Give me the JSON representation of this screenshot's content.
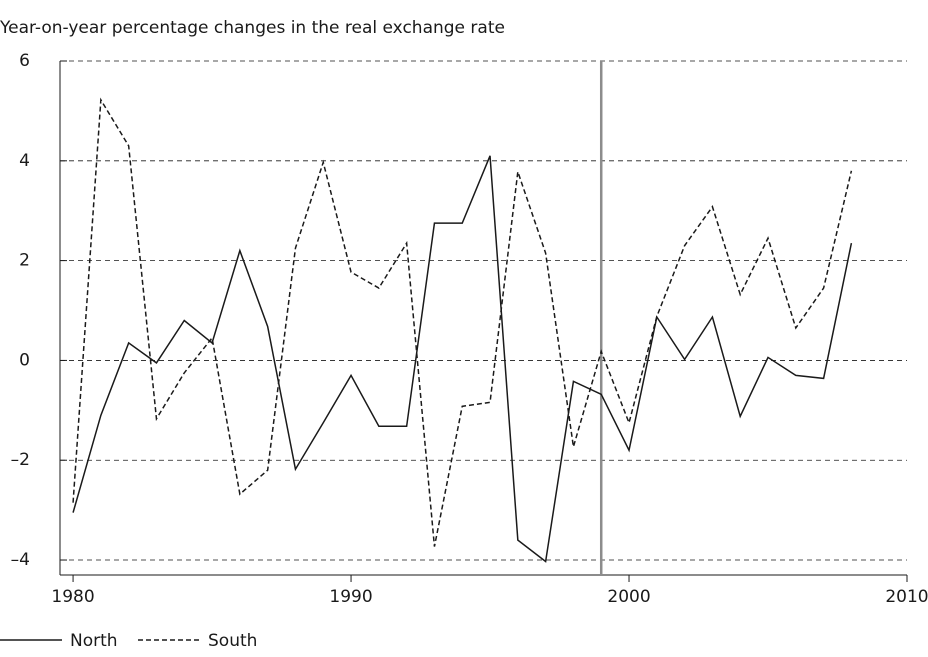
{
  "chart_data": {
    "type": "line",
    "title": "Year-on-year percentage changes in the real exchange rate",
    "x": [
      1980,
      1981,
      1982,
      1983,
      1984,
      1985,
      1986,
      1987,
      1988,
      1989,
      1990,
      1991,
      1992,
      1993,
      1994,
      1995,
      1996,
      1997,
      1998,
      1999,
      2000,
      2001,
      2002,
      2003,
      2004,
      2005,
      2006,
      2007,
      2008
    ],
    "series": [
      {
        "name": "North",
        "color": "#1a1a1a",
        "dash": false,
        "values": [
          -3.05,
          -1.1,
          0.35,
          -0.05,
          0.8,
          0.35,
          2.2,
          0.68,
          -2.18,
          -1.25,
          -0.3,
          -1.32,
          -1.32,
          2.75,
          2.75,
          4.1,
          -3.6,
          -4.03,
          -0.42,
          -0.68,
          -1.8,
          0.87,
          0.02,
          0.87,
          -1.12,
          0.06,
          -0.3,
          -0.36,
          2.35
        ]
      },
      {
        "name": "South",
        "color": "#1a1a1a",
        "dash": true,
        "values": [
          -2.85,
          5.22,
          4.3,
          -1.17,
          -0.25,
          0.45,
          -2.68,
          -2.2,
          2.25,
          3.97,
          1.77,
          1.45,
          2.35,
          -3.73,
          -0.92,
          -0.84,
          3.78,
          2.15,
          -1.73,
          0.18,
          -1.25,
          0.88,
          2.3,
          3.08,
          1.32,
          2.45,
          0.65,
          1.45,
          3.8
        ]
      }
    ],
    "xlim": [
      1979.53,
      2010
    ],
    "xticks": [
      1980,
      1990,
      2000,
      2010
    ],
    "ylim": [
      -4.3,
      6
    ],
    "yticks": [
      {
        "value": -4,
        "label": "–4"
      },
      {
        "value": -2,
        "label": "–2"
      },
      0,
      2,
      4,
      6
    ],
    "vline": 1999,
    "vline_color": "#8c8c8c",
    "grid": true,
    "legend": "bottom-left"
  }
}
